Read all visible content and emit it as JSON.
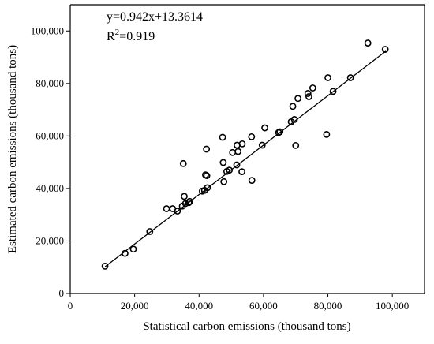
{
  "chart_data": {
    "type": "scatter",
    "xlabel": "Statistical carbon emissions (thousand tons)",
    "ylabel": "Estimated carbon emissions (thousand  tons)",
    "xlim": [
      0,
      110000
    ],
    "ylim": [
      0,
      110000
    ],
    "x_ticks": [
      0,
      20000,
      40000,
      60000,
      80000,
      100000
    ],
    "y_ticks": [
      0,
      20000,
      40000,
      60000,
      80000,
      100000
    ],
    "x_tick_labels": [
      "0",
      "20,000",
      "40,000",
      "60,000",
      "80,000",
      "100,000"
    ],
    "y_tick_labels": [
      "0",
      "20,000",
      "40,000",
      "60,000",
      "80,000",
      "100,000"
    ],
    "annotation_equation": "y=0.942x+13.3614",
    "annotation_r2_prefix": "R",
    "annotation_r2_sup": "2",
    "annotation_r2_suffix": "=0.919",
    "grid": false,
    "fit_line": {
      "slope": 0.942,
      "intercept": 13.3614,
      "x_range": [
        10800,
        98000
      ]
    },
    "points": [
      [
        10800,
        10400
      ],
      [
        17000,
        15300
      ],
      [
        19600,
        16900
      ],
      [
        24700,
        23600
      ],
      [
        29900,
        32300
      ],
      [
        31800,
        32300
      ],
      [
        33300,
        31400
      ],
      [
        34800,
        33300
      ],
      [
        35400,
        37000
      ],
      [
        35800,
        34300
      ],
      [
        36800,
        34600
      ],
      [
        37100,
        35100
      ],
      [
        41000,
        39000
      ],
      [
        41700,
        39300
      ],
      [
        42600,
        40300
      ],
      [
        42000,
        45200
      ],
      [
        42400,
        44900
      ],
      [
        42300,
        55000
      ],
      [
        35100,
        49500
      ],
      [
        47300,
        59500
      ],
      [
        47500,
        49900
      ],
      [
        47700,
        42600
      ],
      [
        48600,
        46500
      ],
      [
        49400,
        47000
      ],
      [
        50400,
        53700
      ],
      [
        51700,
        49000
      ],
      [
        51800,
        56500
      ],
      [
        52100,
        54100
      ],
      [
        53400,
        57000
      ],
      [
        53300,
        46400
      ],
      [
        56300,
        59700
      ],
      [
        56400,
        43100
      ],
      [
        59600,
        56500
      ],
      [
        60400,
        63100
      ],
      [
        64700,
        61300
      ],
      [
        65100,
        61600
      ],
      [
        68600,
        65400
      ],
      [
        69100,
        71300
      ],
      [
        69600,
        66300
      ],
      [
        70000,
        56400
      ],
      [
        70700,
        74300
      ],
      [
        73800,
        76200
      ],
      [
        74100,
        75000
      ],
      [
        75300,
        78300
      ],
      [
        79600,
        60600
      ],
      [
        80000,
        82200
      ],
      [
        81600,
        77000
      ],
      [
        87000,
        82200
      ],
      [
        92400,
        95400
      ],
      [
        97800,
        93000
      ]
    ]
  }
}
